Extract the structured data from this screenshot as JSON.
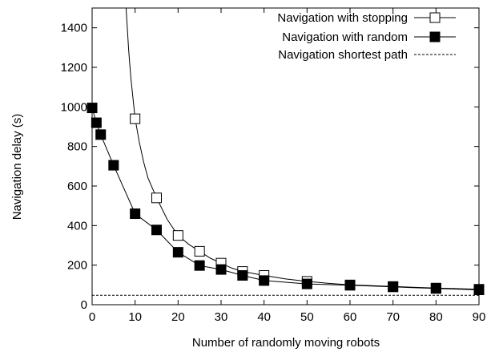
{
  "chart_data": {
    "type": "line",
    "title": "",
    "xlabel": "Number of randomly moving robots",
    "ylabel": "Navigation delay (s)",
    "xlim": [
      0,
      90
    ],
    "ylim": [
      0,
      1500
    ],
    "xticks": [
      0,
      10,
      20,
      30,
      40,
      50,
      60,
      70,
      80,
      90
    ],
    "yticks": [
      0,
      200,
      400,
      600,
      800,
      1000,
      1200,
      1400
    ],
    "grid": false,
    "legend_position": "top-right",
    "series": [
      {
        "name": "Navigation with stopping",
        "marker": "open-square",
        "color": "#000000",
        "curve_x": [
          7.9,
          8.5,
          9.0,
          10,
          11,
          12,
          13,
          15,
          17.5,
          20,
          22.5,
          25,
          27.5,
          30,
          32.5,
          35,
          40,
          45,
          50,
          55,
          60,
          70,
          80,
          90
        ],
        "curve_y": [
          1500,
          1290,
          1150,
          940,
          820,
          720,
          640,
          540,
          430,
          350,
          305,
          270,
          235,
          210,
          185,
          168,
          148,
          130,
          118,
          108,
          100,
          92,
          84,
          78
        ],
        "marker_x": [
          10,
          15,
          20,
          25,
          30,
          35,
          40,
          50,
          60,
          70,
          80,
          90
        ],
        "marker_y": [
          940,
          540,
          350,
          270,
          210,
          168,
          148,
          118,
          100,
          92,
          84,
          78
        ]
      },
      {
        "name": "Navigation with random",
        "marker": "filled-square",
        "color": "#000000",
        "x": [
          0,
          1,
          2,
          5,
          10,
          15,
          20,
          25,
          30,
          35,
          40,
          50,
          60,
          70,
          80,
          90
        ],
        "y": [
          995,
          920,
          860,
          705,
          460,
          378,
          265,
          198,
          178,
          148,
          122,
          105,
          98,
          90,
          82,
          75
        ]
      },
      {
        "name": "Navigation shortest path",
        "marker": "none",
        "style": "dashed",
        "color": "#000000",
        "x": [
          0,
          90
        ],
        "y": [
          48,
          48
        ]
      }
    ]
  }
}
